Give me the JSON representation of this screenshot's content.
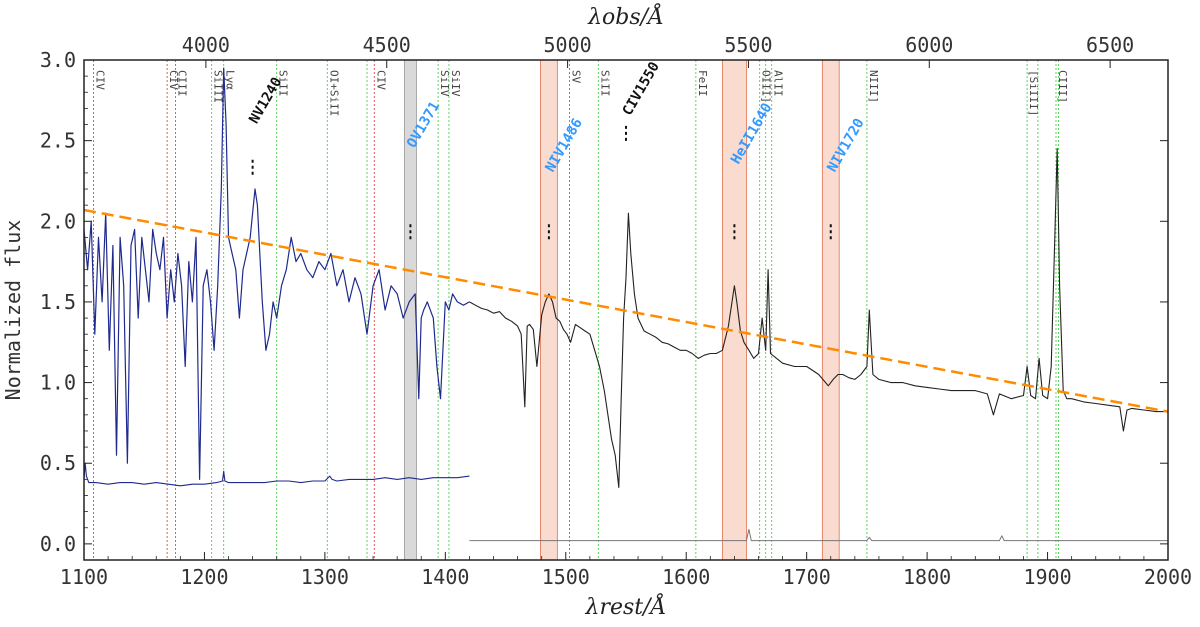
{
  "chart_data": {
    "type": "line",
    "xlabel": "λrest/Å",
    "x2label": "λobs/Å",
    "ylabel": "Normalized flux",
    "xlim": [
      1100,
      2000
    ],
    "ylim": [
      -0.1,
      3.0
    ],
    "x_ticks": [
      "1100",
      "1200",
      "1300",
      "1400",
      "1500",
      "1600",
      "1700",
      "1800",
      "1900",
      "2000"
    ],
    "y_ticks": [
      "0.0",
      "0.5",
      "1.0",
      "1.5",
      "2.0",
      "2.5",
      "3.0"
    ],
    "top_ticks": [
      {
        "obs": 4000,
        "label": "4000"
      },
      {
        "obs": 4500,
        "label": "4500"
      },
      {
        "obs": 5000,
        "label": "5000"
      },
      {
        "obs": 5500,
        "label": "5500"
      },
      {
        "obs": 6000,
        "label": "6000"
      },
      {
        "obs": 6500,
        "label": "6500"
      }
    ],
    "obs_to_rest_factor": 3.33,
    "continuum": {
      "x": [
        1100,
        2000
      ],
      "y": [
        2.07,
        0.82
      ],
      "color": "#ff8c00"
    },
    "colors": {
      "blue_spectrum": "#1f2a8f",
      "black_spectrum": "#222222",
      "green_lines": "#33cc33",
      "red_lines": "#dd3333",
      "bands": "#f4b8a0",
      "grey_band": "#aaaaaa",
      "error_spectrum": "#777777"
    },
    "series": [
      {
        "id": "blue",
        "x": [
          1100,
          1103,
          1106,
          1109,
          1112,
          1115,
          1118,
          1121,
          1124,
          1127,
          1130,
          1133,
          1136,
          1139,
          1142,
          1145,
          1148,
          1151,
          1154,
          1157,
          1160,
          1163,
          1166,
          1169,
          1172,
          1175,
          1178,
          1181,
          1184,
          1187,
          1190,
          1193,
          1196,
          1199,
          1202,
          1205,
          1208,
          1211,
          1214,
          1216,
          1218,
          1220,
          1223,
          1226,
          1229,
          1232,
          1235,
          1238,
          1240,
          1242,
          1244,
          1246,
          1248,
          1251,
          1254,
          1257,
          1260,
          1264,
          1268,
          1272,
          1276,
          1280,
          1285,
          1290,
          1295,
          1300,
          1305,
          1310,
          1315,
          1320,
          1325,
          1330,
          1335,
          1340,
          1345,
          1350,
          1355,
          1360,
          1365,
          1370,
          1375,
          1378,
          1380,
          1382,
          1385,
          1390,
          1393,
          1396,
          1400,
          1403,
          1406,
          1410,
          1415,
          1420
        ],
        "y": [
          1.95,
          1.7,
          2.0,
          1.3,
          1.9,
          1.5,
          2.05,
          1.2,
          1.85,
          0.55,
          1.9,
          1.6,
          0.5,
          1.85,
          1.95,
          1.4,
          1.9,
          1.7,
          1.5,
          1.95,
          1.8,
          1.7,
          1.9,
          1.4,
          1.7,
          1.5,
          1.8,
          1.6,
          1.1,
          1.75,
          1.5,
          1.9,
          0.4,
          1.6,
          1.7,
          1.5,
          1.2,
          1.6,
          2.2,
          2.95,
          2.6,
          1.9,
          1.8,
          1.7,
          1.4,
          1.7,
          1.8,
          1.9,
          2.05,
          2.2,
          2.1,
          1.8,
          1.5,
          1.2,
          1.3,
          1.5,
          1.4,
          1.6,
          1.7,
          1.9,
          1.75,
          1.8,
          1.7,
          1.65,
          1.75,
          1.7,
          1.8,
          1.6,
          1.7,
          1.5,
          1.65,
          1.55,
          1.3,
          1.6,
          1.7,
          1.45,
          1.6,
          1.55,
          1.4,
          1.5,
          1.55,
          0.9,
          1.4,
          1.45,
          1.5,
          1.4,
          1.1,
          0.9,
          1.5,
          1.45,
          1.55,
          1.5,
          1.48,
          1.5
        ]
      },
      {
        "id": "black",
        "x": [
          1420,
          1425,
          1430,
          1435,
          1440,
          1445,
          1450,
          1455,
          1460,
          1463,
          1466,
          1468,
          1470,
          1473,
          1476,
          1480,
          1483,
          1486,
          1489,
          1492,
          1495,
          1498,
          1501,
          1504,
          1508,
          1512,
          1516,
          1520,
          1524,
          1528,
          1532,
          1535,
          1538,
          1541,
          1544,
          1546,
          1548,
          1550,
          1552,
          1554,
          1557,
          1560,
          1565,
          1570,
          1575,
          1580,
          1585,
          1590,
          1595,
          1600,
          1605,
          1610,
          1615,
          1620,
          1625,
          1630,
          1635,
          1638,
          1640,
          1642,
          1645,
          1648,
          1652,
          1656,
          1660,
          1663,
          1666,
          1668,
          1670,
          1675,
          1680,
          1690,
          1700,
          1710,
          1718,
          1722,
          1726,
          1730,
          1735,
          1740,
          1745,
          1750,
          1752,
          1755,
          1760,
          1770,
          1780,
          1790,
          1800,
          1810,
          1820,
          1830,
          1840,
          1850,
          1855,
          1860,
          1870,
          1880,
          1883,
          1886,
          1890,
          1893,
          1896,
          1900,
          1903,
          1906,
          1908,
          1910,
          1913,
          1916,
          1920,
          1930,
          1940,
          1950,
          1960,
          1963,
          1966,
          1970,
          1980,
          1990,
          2000
        ],
        "y": [
          1.5,
          1.48,
          1.46,
          1.45,
          1.43,
          1.44,
          1.4,
          1.38,
          1.35,
          1.3,
          0.85,
          1.35,
          1.36,
          1.33,
          1.1,
          1.42,
          1.5,
          1.55,
          1.5,
          1.4,
          1.38,
          1.33,
          1.3,
          1.25,
          1.36,
          1.34,
          1.32,
          1.3,
          1.2,
          1.1,
          0.95,
          0.8,
          0.65,
          0.55,
          0.35,
          0.9,
          1.4,
          1.65,
          2.05,
          1.8,
          1.55,
          1.4,
          1.32,
          1.3,
          1.28,
          1.25,
          1.24,
          1.22,
          1.2,
          1.2,
          1.18,
          1.15,
          1.17,
          1.18,
          1.18,
          1.2,
          1.35,
          1.5,
          1.6,
          1.5,
          1.32,
          1.25,
          1.2,
          1.15,
          1.18,
          1.4,
          1.2,
          1.7,
          1.18,
          1.15,
          1.12,
          1.1,
          1.1,
          1.05,
          0.98,
          1.02,
          1.05,
          1.05,
          1.03,
          1.02,
          1.05,
          1.1,
          1.45,
          1.05,
          1.02,
          1.0,
          1.0,
          0.98,
          0.97,
          0.96,
          0.95,
          0.95,
          0.95,
          0.93,
          0.8,
          0.93,
          0.9,
          0.92,
          1.1,
          0.92,
          0.9,
          1.15,
          0.92,
          0.9,
          1.1,
          1.9,
          2.45,
          1.6,
          0.95,
          0.9,
          0.9,
          0.88,
          0.87,
          0.86,
          0.85,
          0.7,
          0.83,
          0.84,
          0.83,
          0.82,
          0.82
        ]
      },
      {
        "id": "blue_error",
        "x": [
          1100,
          1101,
          1102,
          1104,
          1110,
          1120,
          1130,
          1140,
          1150,
          1160,
          1170,
          1180,
          1190,
          1200,
          1210,
          1215,
          1216,
          1217,
          1220,
          1230,
          1240,
          1250,
          1260,
          1270,
          1280,
          1290,
          1300,
          1304,
          1306,
          1310,
          1320,
          1330,
          1340,
          1350,
          1360,
          1370,
          1380,
          1390,
          1400,
          1410,
          1420
        ],
        "y": [
          0.4,
          0.5,
          0.42,
          0.38,
          0.38,
          0.37,
          0.38,
          0.38,
          0.37,
          0.38,
          0.37,
          0.36,
          0.37,
          0.37,
          0.38,
          0.39,
          0.45,
          0.39,
          0.38,
          0.38,
          0.38,
          0.38,
          0.39,
          0.39,
          0.38,
          0.39,
          0.39,
          0.42,
          0.4,
          0.39,
          0.4,
          0.4,
          0.4,
          0.41,
          0.4,
          0.41,
          0.4,
          0.41,
          0.41,
          0.41,
          0.42
        ]
      },
      {
        "id": "black_error",
        "x": [
          1420,
          1500,
          1600,
          1650,
          1652,
          1654,
          1700,
          1750,
          1752,
          1754,
          1800,
          1860,
          1862,
          1864,
          1900,
          2000
        ],
        "y": [
          0.02,
          0.02,
          0.02,
          0.02,
          0.09,
          0.02,
          0.02,
          0.02,
          0.04,
          0.02,
          0.02,
          0.02,
          0.05,
          0.02,
          0.02,
          0.02
        ]
      }
    ],
    "green_lines": [
      {
        "x": 1206,
        "label": "SiIII"
      },
      {
        "x": 1216,
        "label": "Lyα"
      },
      {
        "x": 1260,
        "label": "SiII"
      },
      {
        "x": 1302,
        "label": "OI+SiII"
      },
      {
        "x": 1335,
        "label": ""
      },
      {
        "x": 1394,
        "label": "SiIV"
      },
      {
        "x": 1403,
        "label": "SiIV"
      },
      {
        "x": 1527,
        "label": "SiII"
      },
      {
        "x": 1608,
        "label": "FeII"
      },
      {
        "x": 1661,
        "label": "OIII]"
      },
      {
        "x": 1666,
        "label": ""
      },
      {
        "x": 1671,
        "label": "AlII"
      },
      {
        "x": 1750,
        "label": "NIII]"
      },
      {
        "x": 1883,
        "label": "[SiIII]"
      },
      {
        "x": 1892,
        "label": ""
      },
      {
        "x": 1907,
        "label": "CIII]"
      },
      {
        "x": 1909,
        "label": ""
      }
    ],
    "red_lines": [
      {
        "x": 1108,
        "label": "CIV"
      },
      {
        "x": 1169,
        "label": "CIV"
      },
      {
        "x": 1176,
        "label": "CIII"
      },
      {
        "x": 1341,
        "label": "CIV"
      },
      {
        "x": 1503,
        "label": "SV"
      }
    ],
    "bands": [
      {
        "x0": 1479,
        "x1": 1493,
        "kind": "salmon"
      },
      {
        "x0": 1630,
        "x1": 1650,
        "kind": "salmon"
      },
      {
        "x0": 1713,
        "x1": 1727,
        "kind": "salmon"
      },
      {
        "x0": 1366,
        "x1": 1376,
        "kind": "grey"
      }
    ],
    "features": [
      {
        "x": 1240,
        "label": "NV1240",
        "color": "#111111",
        "y_label": 2.6,
        "y_tick": 2.27
      },
      {
        "x": 1371,
        "label": "OV1371",
        "color": "#3399ff",
        "y_label": 2.45,
        "y_tick": 1.87
      },
      {
        "x": 1486,
        "label": "NIV1486",
        "color": "#3399ff",
        "y_label": 2.3,
        "y_tick": 1.87
      },
      {
        "x": 1550,
        "label": "CIV1550",
        "color": "#111111",
        "y_label": 2.65,
        "y_tick": 2.48
      },
      {
        "x": 1640,
        "label": "HeII1640",
        "color": "#3399ff",
        "y_label": 2.35,
        "y_tick": 1.87
      },
      {
        "x": 1720,
        "label": "NIV1720",
        "color": "#3399ff",
        "y_label": 2.3,
        "y_tick": 1.87
      }
    ]
  }
}
